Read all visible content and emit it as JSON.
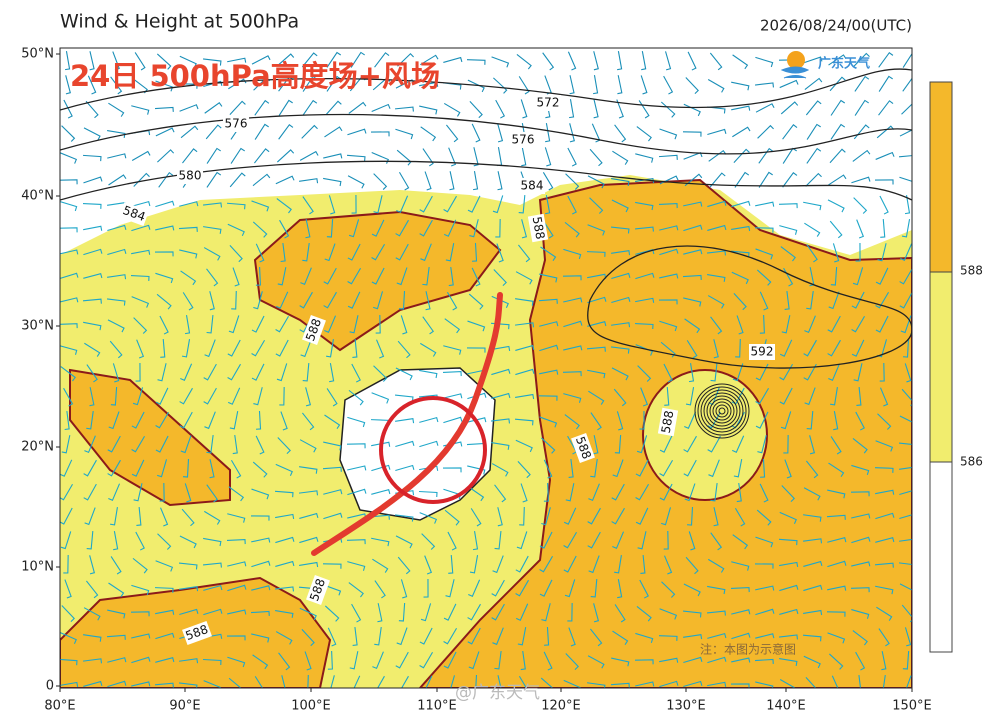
{
  "header": {
    "title": "Wind & Height at 500hPa",
    "timestamp": "2026/08/24/00(UTC)"
  },
  "overlay_title": "24日 500hPa高度场+风场",
  "logo_text": "广东天气",
  "axes": {
    "lat_labels": [
      "50°N",
      "40°N",
      "30°N",
      "20°N",
      "10°N",
      "0"
    ],
    "lon_labels": [
      "80°E",
      "90°E",
      "100°E",
      "110°E",
      "120°E",
      "130°E",
      "140°E",
      "150°E"
    ]
  },
  "contour_labels": [
    "576",
    "572",
    "576",
    "580",
    "584",
    "584",
    "588",
    "588",
    "592",
    "588",
    "588",
    "588",
    "588"
  ],
  "colorbar": {
    "labels": [
      "588",
      "586"
    ]
  },
  "note": "注：本图为示意图",
  "watermark": "@广东天气"
}
